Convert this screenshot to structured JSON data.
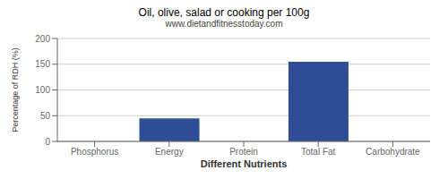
{
  "chart_data": {
    "type": "bar",
    "title": "Oil, olive, salad or cooking per 100g",
    "subtitle": "www.dietandfitnesstoday.com",
    "xlabel": "Different Nutrients",
    "ylabel": "Percentage of RDH (%)",
    "categories": [
      "Phosphorus",
      "Energy",
      "Protein",
      "Total Fat",
      "Carbohydrate"
    ],
    "values": [
      0,
      45,
      0,
      155,
      0
    ],
    "color": "#2e4d96",
    "ylim": [
      0,
      200
    ],
    "yticks": [
      0,
      50,
      100,
      150,
      200
    ],
    "grid": true
  }
}
